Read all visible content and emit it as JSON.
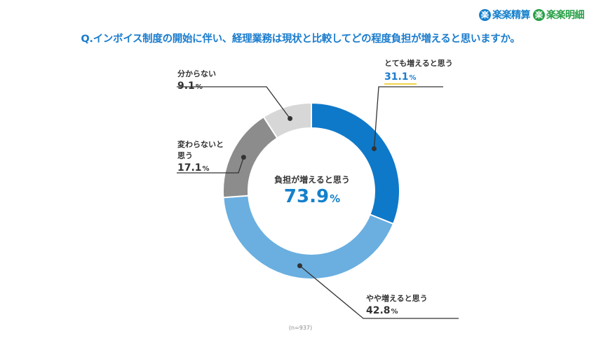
{
  "brands": [
    {
      "mark": "楽",
      "name": "楽楽精算",
      "color": "#1580cc"
    },
    {
      "mark": "楽",
      "name": "楽楽明細",
      "color": "#27a046"
    }
  ],
  "question": "Q.インボイス制度の開始に伴い、経理業務は現状と比較してどの程度負担が増えると思いますか。",
  "center": {
    "label": "負担が増えると思う",
    "value": "73.9",
    "unit": "%"
  },
  "sample": "(n=937)",
  "labels": {
    "very": {
      "name": "とても増えると思う",
      "value": "31.1",
      "unit": "%"
    },
    "some": {
      "name": "やや増えると思う",
      "value": "42.8",
      "unit": "%"
    },
    "not": {
      "name_line1": "変わらないと",
      "name_line2": "思う",
      "value": "17.1",
      "unit": "%"
    },
    "unk": {
      "name": "分からない",
      "value": "9.1",
      "unit": "%"
    }
  },
  "chart_data": {
    "type": "pie",
    "style": "donut",
    "title": "Q.インボイス制度の開始に伴い、経理業務は現状と比較してどの程度負担が増えると思いますか。",
    "categories": [
      "とても増えると思う",
      "やや増えると思う",
      "変わらないと思う",
      "分からない"
    ],
    "values": [
      31.1,
      42.8,
      17.1,
      9.1
    ],
    "colors": [
      "#0f79c9",
      "#6aafe0",
      "#8c8c8c",
      "#d7d7d7"
    ],
    "center_text": "負担が増えると思う 73.9%",
    "n": 937
  }
}
